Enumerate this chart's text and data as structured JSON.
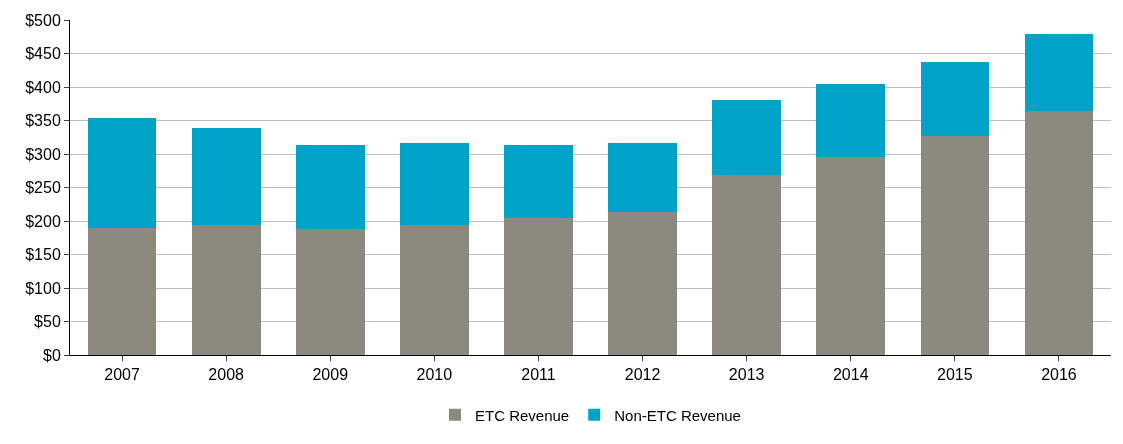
{
  "chart_data": {
    "type": "bar",
    "stacked": true,
    "categories": [
      "2007",
      "2008",
      "2009",
      "2010",
      "2011",
      "2012",
      "2013",
      "2014",
      "2015",
      "2016"
    ],
    "series": [
      {
        "name": "ETC Revenue",
        "color": "#8c8a7e",
        "values": [
          190,
          194,
          188,
          194,
          204,
          214,
          269,
          295,
          327,
          364
        ]
      },
      {
        "name": "Non-ETC Revenue",
        "color": "#00a2c8",
        "values": [
          164,
          145,
          126,
          122,
          110,
          102,
          111,
          110,
          111,
          115
        ]
      }
    ],
    "ylim": [
      0,
      500
    ],
    "yticks": [
      {
        "value": 0,
        "label": "$0"
      },
      {
        "value": 50,
        "label": "$50"
      },
      {
        "value": 100,
        "label": "$100"
      },
      {
        "value": 150,
        "label": "$150"
      },
      {
        "value": 200,
        "label": "$200"
      },
      {
        "value": 250,
        "label": "$250"
      },
      {
        "value": 300,
        "label": "$300"
      },
      {
        "value": 350,
        "label": "$350"
      },
      {
        "value": 400,
        "label": "$400"
      },
      {
        "value": 450,
        "label": "$450"
      },
      {
        "value": 500,
        "label": "$500"
      }
    ],
    "grid": "y",
    "legend": "bottom"
  }
}
